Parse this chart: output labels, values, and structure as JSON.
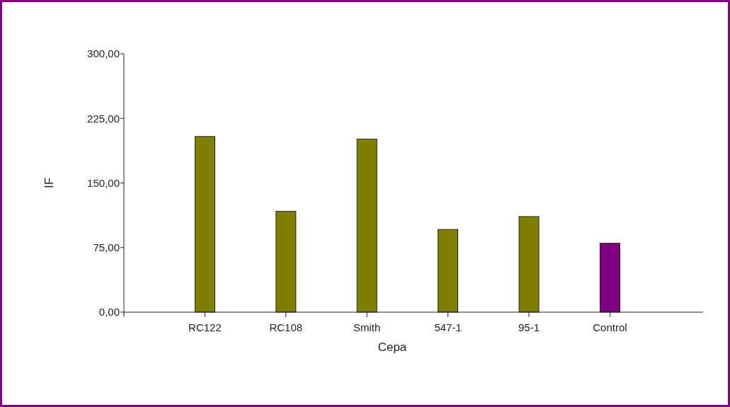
{
  "chart_data": {
    "type": "bar",
    "xlabel": "Cepa",
    "ylabel": "IF",
    "categories": [
      "RC122",
      "RC108",
      "Smith",
      "547-1",
      "95-1",
      "Control"
    ],
    "values": [
      204,
      117,
      201,
      96,
      111,
      80
    ],
    "colors": [
      "#808000",
      "#808000",
      "#808000",
      "#808000",
      "#808000",
      "#800080"
    ],
    "ylim": [
      0,
      300
    ],
    "yticks": [
      {
        "value": 0,
        "label": "0,00"
      },
      {
        "value": 75,
        "label": "75,00"
      },
      {
        "value": 150,
        "label": "150,00"
      },
      {
        "value": 225,
        "label": "225,00"
      },
      {
        "value": 300,
        "label": "300,00"
      }
    ],
    "grid": false
  }
}
